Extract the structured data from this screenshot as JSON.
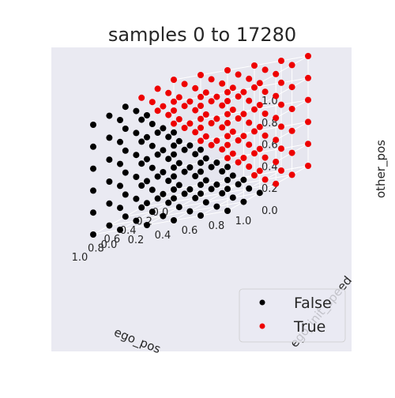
{
  "chart_data": {
    "type": "scatter",
    "title": "samples 0 to 17280",
    "xlabel": "ego_pos",
    "ylabel": "ego_init_speed",
    "zlabel": "other_pos",
    "x_ticks": [
      "0.0",
      "0.2",
      "0.4",
      "0.6",
      "0.8",
      "1.0"
    ],
    "y_ticks": [
      "0.0",
      "0.2",
      "0.4",
      "0.6",
      "0.8",
      "1.0"
    ],
    "z_ticks": [
      "0.0",
      "0.2",
      "0.4",
      "0.6",
      "0.8",
      "1.0"
    ],
    "xlim": [
      0,
      1
    ],
    "ylim": [
      0,
      1
    ],
    "zlim": [
      0,
      1
    ],
    "grid": [
      0.0,
      0.2,
      0.4,
      0.6,
      0.8,
      1.0
    ],
    "projection": "3d",
    "legend": {
      "placement": "lower-right",
      "entries": [
        {
          "label": "False",
          "color": "#000000"
        },
        {
          "label": "True",
          "color": "#ee0000"
        }
      ]
    },
    "series": [
      {
        "name": "False",
        "color": "#000000",
        "rule": "points of the 6x6x6 grid where other_pos + ego_init_speed <= 0.4 + ego_pos"
      },
      {
        "name": "True",
        "color": "#ee0000",
        "rule": "all other points of the 6x6x6 grid"
      }
    ]
  },
  "colors": {
    "pane": "#e6e6ef",
    "grid": "#ffffff",
    "false_marker": "#000000",
    "true_marker": "#ee0000"
  }
}
